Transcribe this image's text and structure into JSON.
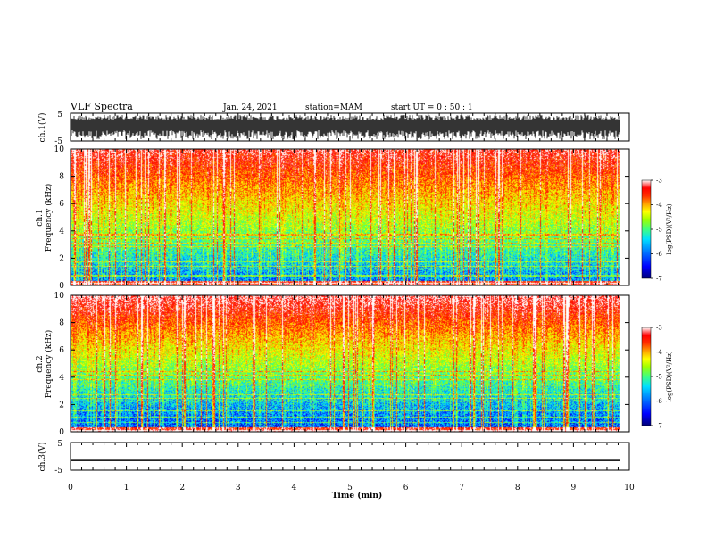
{
  "header": {
    "title": "VLF Spectra",
    "date": "Jan. 24, 2021",
    "station": "station=MAM",
    "start": "start  UT =   0 : 50 : 1"
  },
  "colors": {
    "colormap": [
      "#000078",
      "#0000ff",
      "#0080ff",
      "#00e0ff",
      "#40ff80",
      "#a0ff00",
      "#ffff00",
      "#ffa000",
      "#ff3000",
      "#ff0000",
      "#ffffff"
    ],
    "trace": "#000000"
  },
  "chart_data": [
    {
      "type": "line",
      "id": "ch1",
      "ylabel": "ch.1(V)",
      "ylim": [
        -5,
        5
      ],
      "yticks": [
        "5",
        "-5"
      ],
      "description_signal": "dense waveform saturating between -5 and 5"
    },
    {
      "type": "heatmap",
      "id": "ch1-spec",
      "ylabel": "ch.1\nFrequency (kHz)",
      "ylim": [
        0,
        10
      ],
      "yticks": [
        "0",
        "2",
        "4",
        "6",
        "8",
        "10"
      ],
      "colorbar": {
        "label": "log(PSD)(V²/Hz)",
        "range": [
          -7,
          -3
        ],
        "ticks": [
          "-3",
          "-4",
          "-5",
          "-6",
          "-7"
        ]
      }
    },
    {
      "type": "heatmap",
      "id": "ch2-spec",
      "ylabel": "ch.2\nFrequency (kHz)",
      "ylim": [
        0,
        10
      ],
      "yticks": [
        "0",
        "2",
        "4",
        "6",
        "8",
        "10"
      ],
      "colorbar": {
        "label": "log(PSD)(V²/Hz)",
        "range": [
          -7,
          -3
        ],
        "ticks": [
          "-3",
          "-4",
          "-5",
          "-6",
          "-7"
        ]
      }
    },
    {
      "type": "line",
      "id": "ch3",
      "ylabel": "ch.3(V)",
      "ylim": [
        -5,
        5
      ],
      "yticks": [
        "5",
        "-5"
      ],
      "values_const": -1.5
    }
  ],
  "xaxis": {
    "label": "Time  (min)",
    "xlim": [
      0,
      10
    ],
    "ticks": [
      "0",
      "1",
      "2",
      "3",
      "4",
      "5",
      "6",
      "7",
      "8",
      "9",
      "10"
    ],
    "data_end": 9.83
  }
}
